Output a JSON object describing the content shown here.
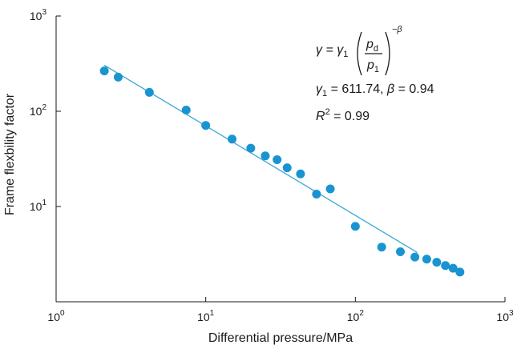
{
  "chart_data": {
    "type": "scatter",
    "xlabel": "Differential pressure/MPa",
    "ylabel": "Frame flexbility factor",
    "xscale": "log",
    "yscale": "log",
    "xlim": [
      1,
      1000
    ],
    "ylim": [
      1,
      1000
    ],
    "grid": false,
    "xticks": [
      {
        "value": 1,
        "base": "10",
        "exp": "0"
      },
      {
        "value": 10,
        "base": "10",
        "exp": "1"
      },
      {
        "value": 100,
        "base": "10",
        "exp": "2"
      },
      {
        "value": 1000,
        "base": "10",
        "exp": "3"
      }
    ],
    "yticks": [
      {
        "value": 10,
        "base": "10",
        "exp": "1"
      },
      {
        "value": 100,
        "base": "10",
        "exp": "2"
      },
      {
        "value": 1000,
        "base": "10",
        "exp": "3"
      }
    ],
    "point_color": "#1a94d0",
    "fit_color": "#3aa6d8",
    "points": [
      {
        "x": 2.1,
        "y": 265
      },
      {
        "x": 2.6,
        "y": 228
      },
      {
        "x": 4.2,
        "y": 158
      },
      {
        "x": 7.4,
        "y": 103
      },
      {
        "x": 10,
        "y": 71
      },
      {
        "x": 15,
        "y": 51
      },
      {
        "x": 20,
        "y": 41
      },
      {
        "x": 25,
        "y": 34
      },
      {
        "x": 30,
        "y": 31
      },
      {
        "x": 35,
        "y": 25.5
      },
      {
        "x": 43,
        "y": 22
      },
      {
        "x": 55,
        "y": 13.5
      },
      {
        "x": 68,
        "y": 15.3
      },
      {
        "x": 100,
        "y": 6.2
      },
      {
        "x": 150,
        "y": 3.75
      },
      {
        "x": 200,
        "y": 3.35
      },
      {
        "x": 250,
        "y": 2.95
      },
      {
        "x": 300,
        "y": 2.8
      },
      {
        "x": 350,
        "y": 2.6
      },
      {
        "x": 400,
        "y": 2.4
      },
      {
        "x": 450,
        "y": 2.25
      },
      {
        "x": 500,
        "y": 2.05
      }
    ],
    "fit": {
      "gamma1": 611.74,
      "beta": 0.94,
      "x_range": [
        2.1,
        260
      ]
    },
    "annotation": {
      "eq_lhs": "γ = γ",
      "eq_sub1": "1",
      "num_var": "p",
      "num_sub": "d",
      "den_var": "p",
      "den_sub": "1",
      "exponent": "−β",
      "params_line": {
        "g": "γ",
        "g_sub": "1",
        "g_val": " = 611.74, ",
        "b": "β",
        "b_val": " = 0.94"
      },
      "r2_line": {
        "r": "R",
        "r_sup": "2",
        "r_val": " = 0.99"
      }
    }
  }
}
